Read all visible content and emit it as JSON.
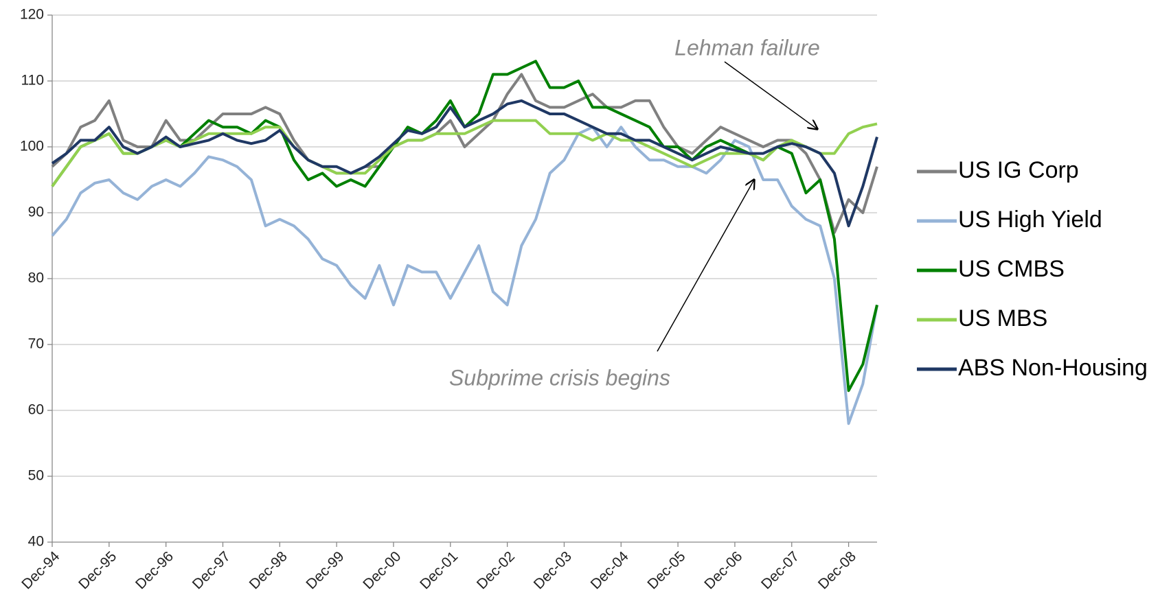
{
  "chart_data": {
    "type": "line",
    "categories": [
      "Dec-94",
      null,
      null,
      null,
      "Dec-95",
      null,
      null,
      null,
      "Dec-96",
      null,
      null,
      null,
      "Dec-97",
      null,
      null,
      null,
      "Dec-98",
      null,
      null,
      null,
      "Dec-99",
      null,
      null,
      null,
      "Dec-00",
      null,
      null,
      null,
      "Dec-01",
      null,
      null,
      null,
      "Dec-02",
      null,
      null,
      null,
      "Dec-03",
      null,
      null,
      null,
      "Dec-04",
      null,
      null,
      null,
      "Dec-05",
      null,
      null,
      null,
      "Dec-06",
      null,
      null,
      null,
      "Dec-07",
      null,
      null,
      null,
      "Dec-08",
      null,
      null
    ],
    "series": [
      {
        "name": "US IG Corp",
        "color": "#808080",
        "values": [
          97,
          99,
          103,
          104,
          107,
          101,
          100,
          100,
          104,
          101,
          101,
          103,
          105,
          105,
          105,
          106,
          105,
          101,
          98,
          97,
          96,
          96,
          97,
          97,
          100,
          101,
          101,
          102,
          104,
          100,
          102,
          104,
          108,
          111,
          107,
          106,
          106,
          107,
          108,
          106,
          106,
          107,
          107,
          103,
          100,
          99,
          101,
          103,
          102,
          101,
          100,
          101,
          101,
          99,
          95,
          87,
          92,
          90,
          97
        ]
      },
      {
        "name": "US High Yield",
        "color": "#95b3d7",
        "values": [
          86.5,
          89,
          93,
          94.5,
          95,
          93,
          92,
          94,
          95,
          94,
          96,
          98.5,
          98,
          97,
          95,
          88,
          89,
          88,
          86,
          83,
          82,
          79,
          77,
          82,
          76,
          82,
          81,
          81,
          77,
          81,
          85,
          78,
          76,
          85,
          89,
          96,
          98,
          102,
          103,
          100,
          103,
          100,
          98,
          98,
          97,
          97,
          96,
          98,
          101,
          100,
          95,
          95,
          91,
          89,
          88,
          80,
          58,
          64,
          76
        ]
      },
      {
        "name": "US CMBS",
        "color": "#008000",
        "values": [
          94,
          97,
          100,
          101,
          102,
          99,
          99,
          100,
          101,
          100,
          102,
          104,
          103,
          103,
          102,
          104,
          103,
          98,
          95,
          96,
          94,
          95,
          94,
          97,
          100,
          103,
          102,
          104,
          107,
          103,
          105,
          111,
          111,
          112,
          113,
          109,
          109,
          110,
          106,
          106,
          105,
          104,
          103,
          100,
          100,
          98,
          100,
          101,
          100,
          99,
          98,
          100,
          99,
          93,
          95,
          86,
          63,
          67,
          76
        ]
      },
      {
        "name": "US MBS",
        "color": "#92d050",
        "values": [
          94,
          97,
          100,
          101,
          102,
          99,
          99,
          100,
          101,
          100,
          101,
          102,
          102,
          102,
          102,
          103,
          103,
          100,
          98,
          97,
          96,
          96,
          96,
          98,
          100,
          101,
          101,
          102,
          102,
          102,
          103,
          104,
          104,
          104,
          104,
          102,
          102,
          102,
          101,
          102,
          101,
          101,
          100,
          99,
          98,
          97,
          98,
          99,
          99,
          99,
          98,
          100,
          101,
          100,
          99,
          99,
          102,
          103,
          103.5
        ]
      },
      {
        "name": "ABS Non-Housing",
        "color": "#1f3864",
        "values": [
          97.5,
          99,
          101,
          101,
          103,
          100,
          99,
          100,
          101.5,
          100,
          100.5,
          101,
          102,
          101,
          100.5,
          101,
          102.5,
          100,
          98,
          97,
          97,
          96,
          97,
          98.5,
          100.5,
          102.5,
          102,
          103,
          106,
          103,
          104,
          105,
          106.5,
          107,
          106,
          105,
          105,
          104,
          103,
          102,
          102,
          101,
          101,
          100,
          99,
          98,
          99,
          100,
          99.5,
          99,
          99,
          100,
          100.5,
          100,
          99,
          96,
          88,
          94,
          101.5
        ]
      }
    ],
    "ylim": [
      40,
      120
    ],
    "yticks": [
      40,
      50,
      60,
      70,
      80,
      90,
      100,
      110,
      120
    ],
    "grid": true,
    "legend": "right",
    "annotations": [
      "Lehman failure",
      "Subprime crisis begins"
    ]
  }
}
